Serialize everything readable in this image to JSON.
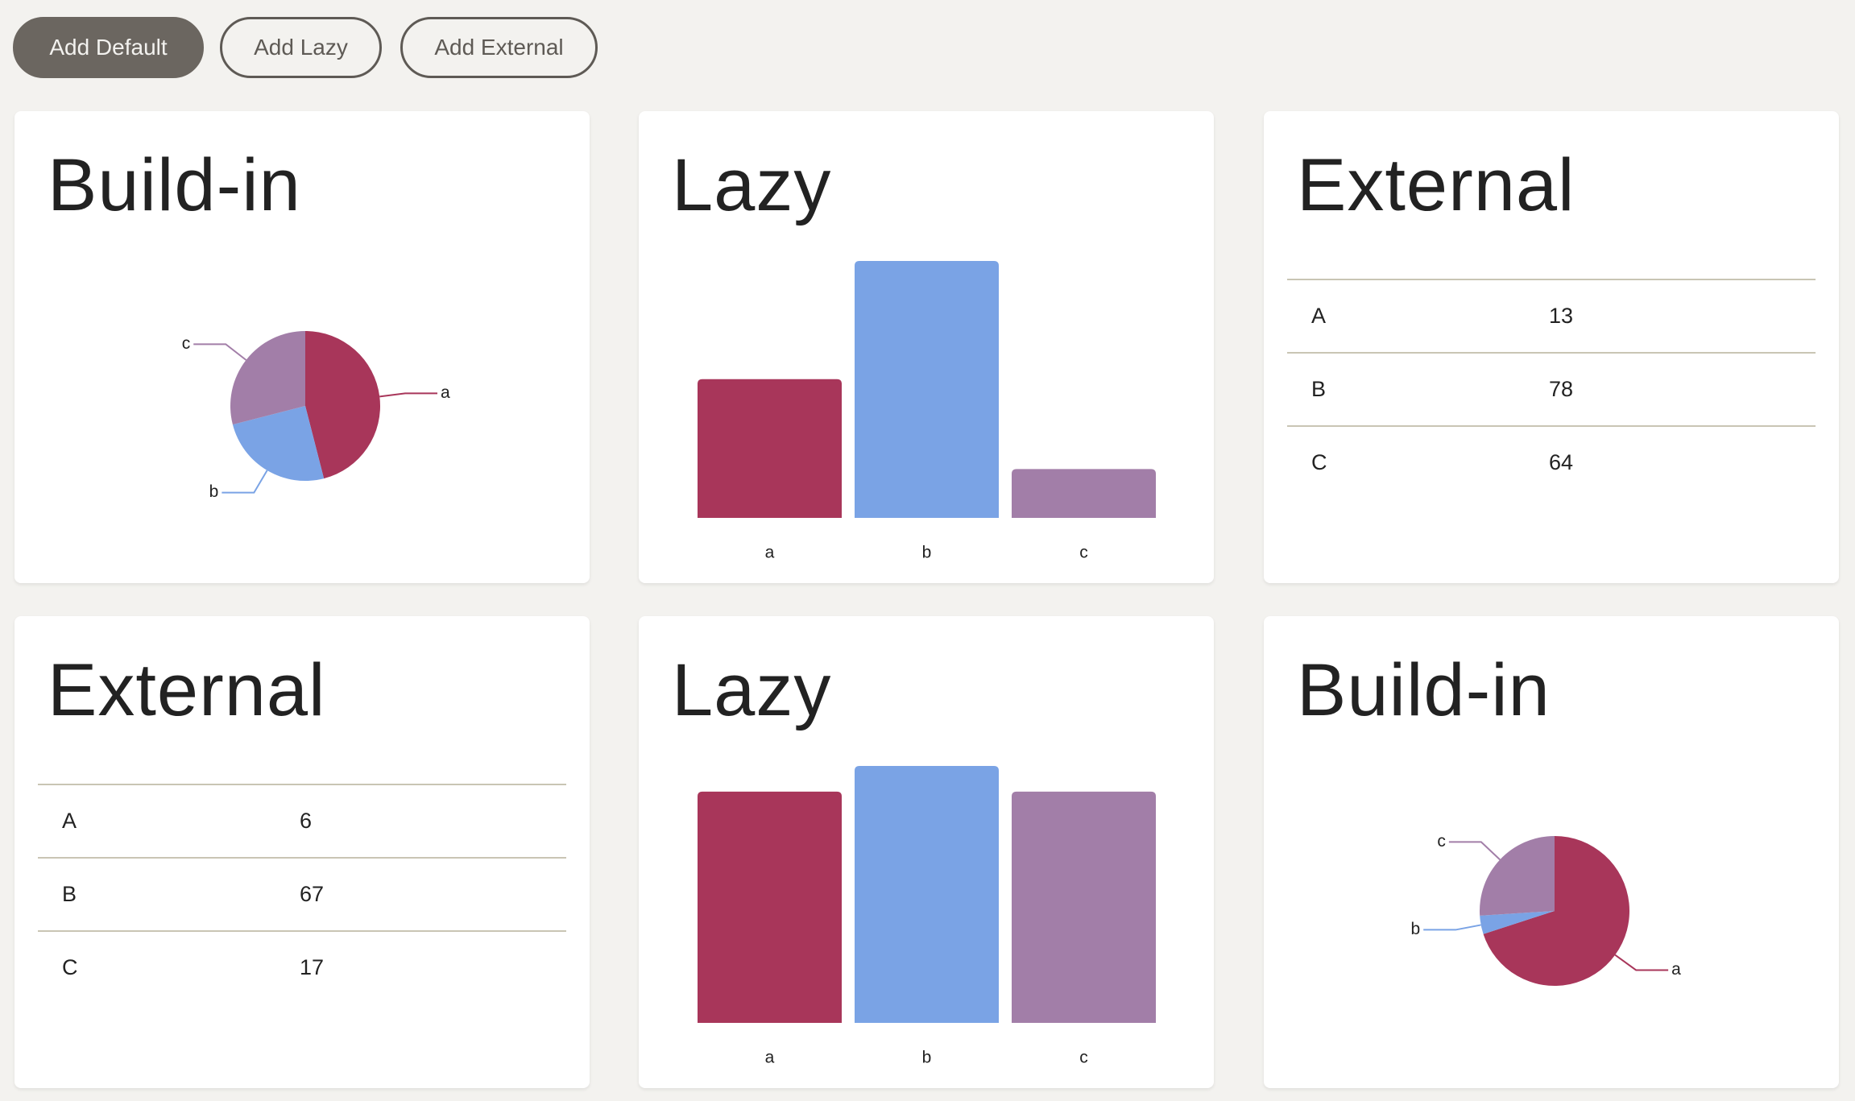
{
  "buttons": [
    "Add Default",
    "Add Lazy",
    "Add External"
  ],
  "cards": [
    {
      "title": "Build-in",
      "chart_data": {
        "type": "pie",
        "categories": [
          "a",
          "b",
          "c"
        ],
        "values": [
          46,
          25,
          29
        ],
        "colors": [
          "#a8365a",
          "#7aa3e5",
          "#a27ea8"
        ]
      }
    },
    {
      "title": "Lazy",
      "chart_data": {
        "type": "bar",
        "categories": [
          "a",
          "b",
          "c"
        ],
        "values": [
          54,
          100,
          19
        ],
        "colors": [
          "#a8365a",
          "#7aa3e5",
          "#a27ea8"
        ]
      }
    },
    {
      "title": "External",
      "table": {
        "rows": [
          [
            "A",
            13
          ],
          [
            "B",
            78
          ],
          [
            "C",
            64
          ]
        ]
      }
    },
    {
      "title": "External",
      "table": {
        "rows": [
          [
            "A",
            6
          ],
          [
            "B",
            67
          ],
          [
            "C",
            17
          ]
        ]
      }
    },
    {
      "title": "Lazy",
      "chart_data": {
        "type": "bar",
        "categories": [
          "a",
          "b",
          "c"
        ],
        "values": [
          90,
          100,
          90
        ],
        "colors": [
          "#a8365a",
          "#7aa3e5",
          "#a27ea8"
        ]
      }
    },
    {
      "title": "Build-in",
      "chart_data": {
        "type": "pie",
        "categories": [
          "a",
          "b",
          "c"
        ],
        "values": [
          70,
          4,
          26
        ],
        "colors": [
          "#a8365a",
          "#7aa3e5",
          "#a27ea8"
        ]
      }
    }
  ]
}
